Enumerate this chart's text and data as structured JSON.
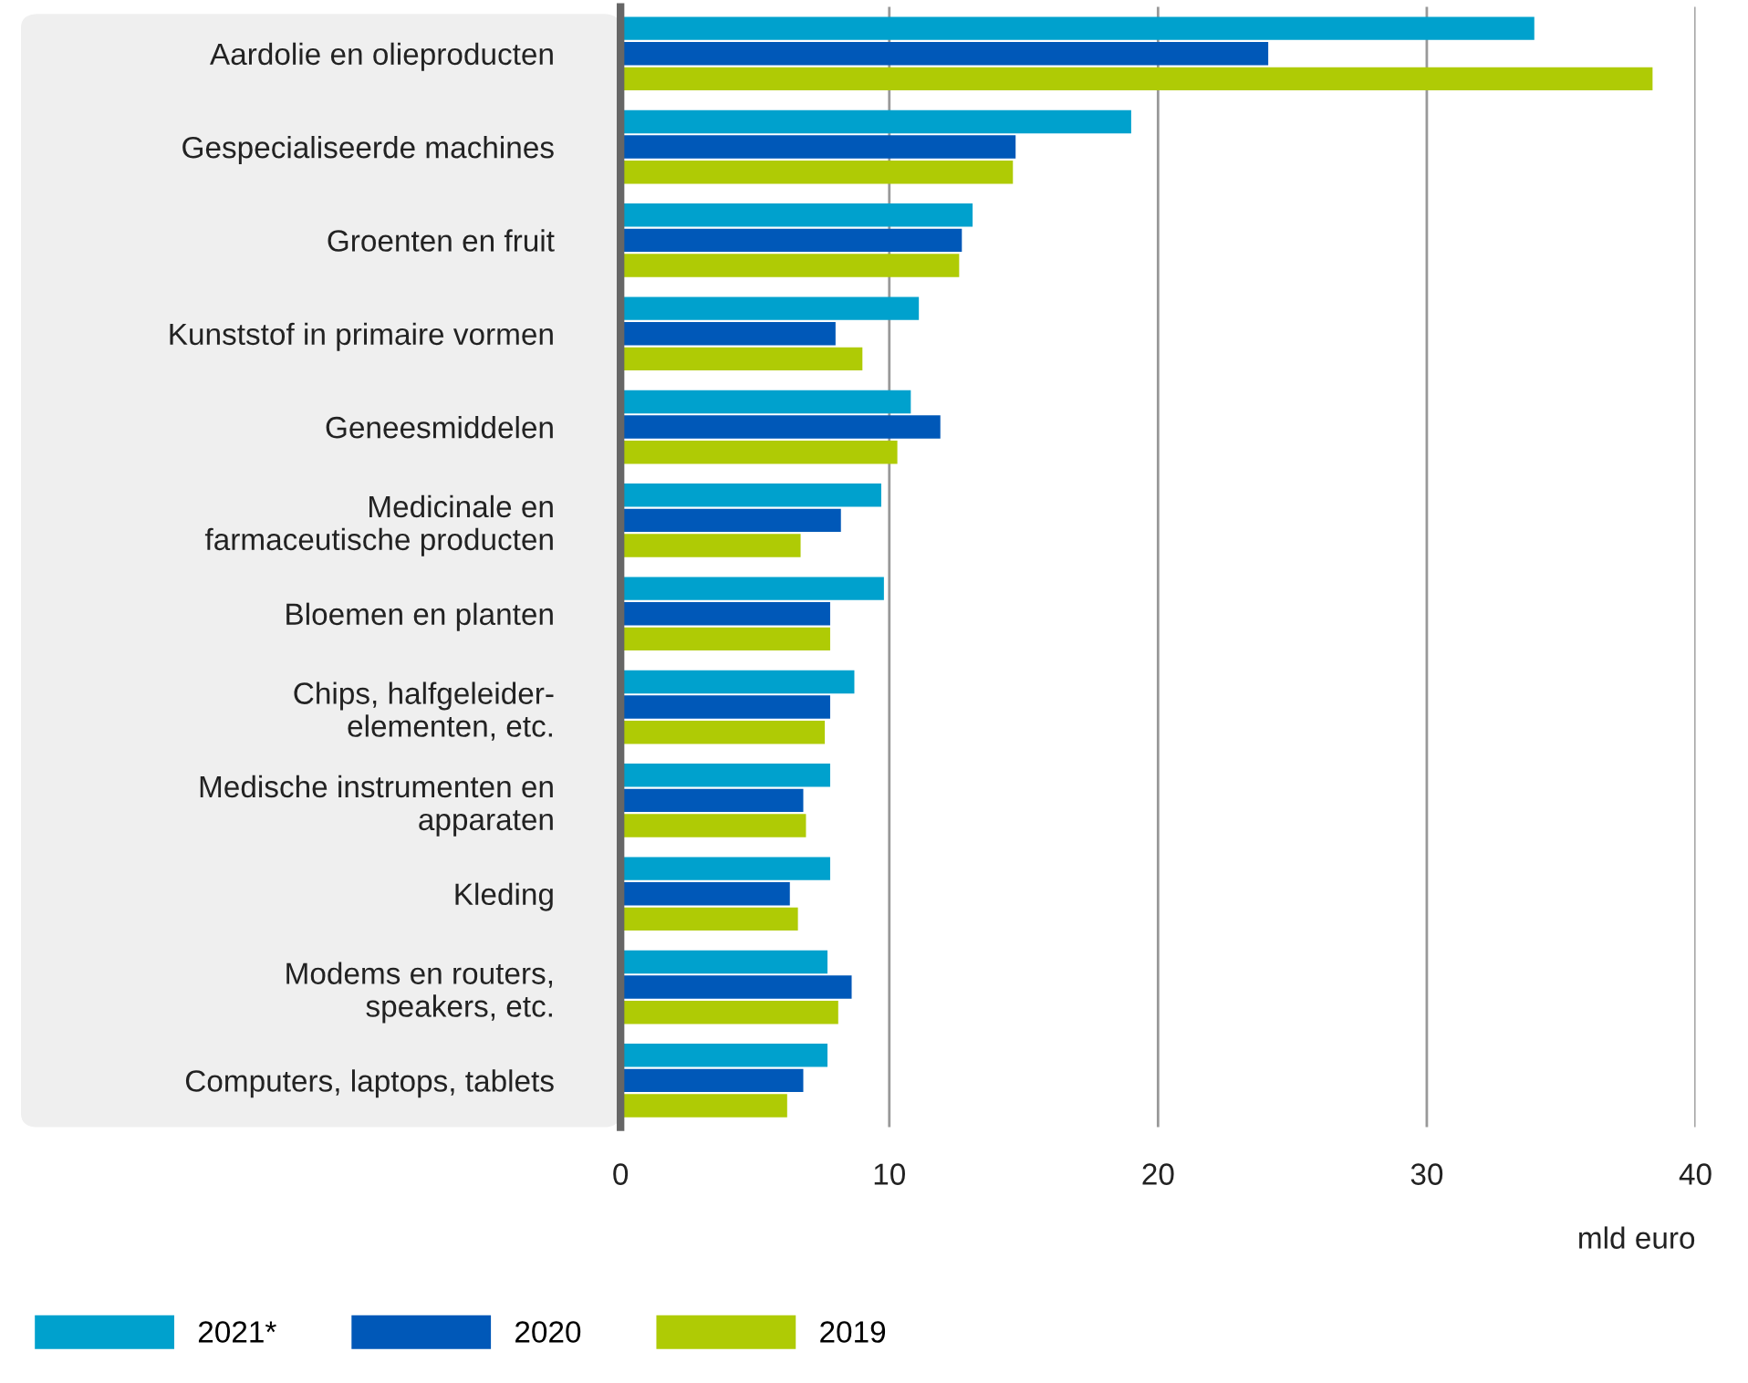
{
  "chart_data": {
    "type": "bar",
    "orientation": "horizontal",
    "xlabel": "mld euro",
    "categories": [
      "Aardolie en olieproducten",
      "Gespecialiseerde machines",
      "Groenten en fruit",
      "Kunststof in primaire vormen",
      "Geneesmiddelen",
      "Medicinale en\nfarmaceutische producten",
      "Bloemen en planten",
      "Chips, halfgeleider-\nelementen, etc.",
      "Medische instrumenten en\napparaten",
      "Kleding",
      "Modems en routers,\nspeakers, etc.",
      "Computers, laptops, tablets"
    ],
    "series": [
      {
        "name": "2021*",
        "color": "#00a1cd",
        "values": [
          34.0,
          19.0,
          13.1,
          11.1,
          10.8,
          9.7,
          9.8,
          8.7,
          7.8,
          7.8,
          7.7,
          7.7
        ]
      },
      {
        "name": "2020",
        "color": "#0058b8",
        "values": [
          24.1,
          14.7,
          12.7,
          8.0,
          11.9,
          8.2,
          7.8,
          7.8,
          6.8,
          6.3,
          8.6,
          6.8
        ]
      },
      {
        "name": "2019",
        "color": "#afcb05",
        "values": [
          38.4,
          14.6,
          12.6,
          9.0,
          10.3,
          6.7,
          7.8,
          7.6,
          6.9,
          6.6,
          8.1,
          6.2
        ]
      }
    ],
    "xlim": [
      0,
      40
    ],
    "xticks": [
      0,
      10,
      20,
      30,
      40
    ],
    "grid": "x",
    "legend": "bottom left"
  }
}
